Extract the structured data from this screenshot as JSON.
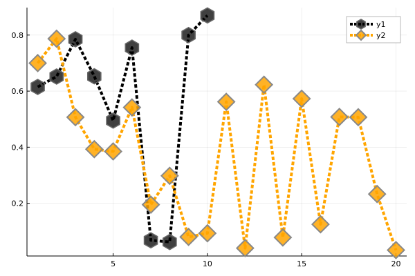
{
  "chart_data": {
    "type": "line",
    "title": "",
    "xlabel": "",
    "ylabel": "",
    "xlim": [
      0.43,
      20.57
    ],
    "ylim": [
      0.012,
      0.898
    ],
    "xticks": [
      5,
      10,
      15,
      20
    ],
    "yticks": [
      0.2,
      0.4,
      0.6,
      0.8
    ],
    "xtick_labels": [
      "5",
      "10",
      "15",
      "20"
    ],
    "ytick_labels": [
      "0.2",
      "0.4",
      "0.6",
      "0.8"
    ],
    "grid": true,
    "legend_position": "top-right",
    "series": [
      {
        "name": "y1",
        "color": "#000000",
        "line_style": "dotted",
        "marker": "hexagon",
        "x": [
          1,
          2,
          3,
          4,
          5,
          6,
          7,
          8,
          9,
          10
        ],
        "y": [
          0.615,
          0.652,
          0.785,
          0.653,
          0.495,
          0.755,
          0.068,
          0.062,
          0.8,
          0.87
        ]
      },
      {
        "name": "y2",
        "color": "#ffa500",
        "line_style": "dotted",
        "marker": "diamond",
        "x": [
          1,
          2,
          3,
          4,
          5,
          6,
          7,
          8,
          9,
          10,
          11,
          12,
          13,
          14,
          15,
          16,
          17,
          18,
          19,
          20
        ],
        "y": [
          0.7,
          0.787,
          0.507,
          0.393,
          0.385,
          0.542,
          0.195,
          0.298,
          0.08,
          0.093,
          0.562,
          0.04,
          0.623,
          0.078,
          0.573,
          0.125,
          0.508,
          0.507,
          0.233,
          0.033
        ]
      }
    ]
  }
}
